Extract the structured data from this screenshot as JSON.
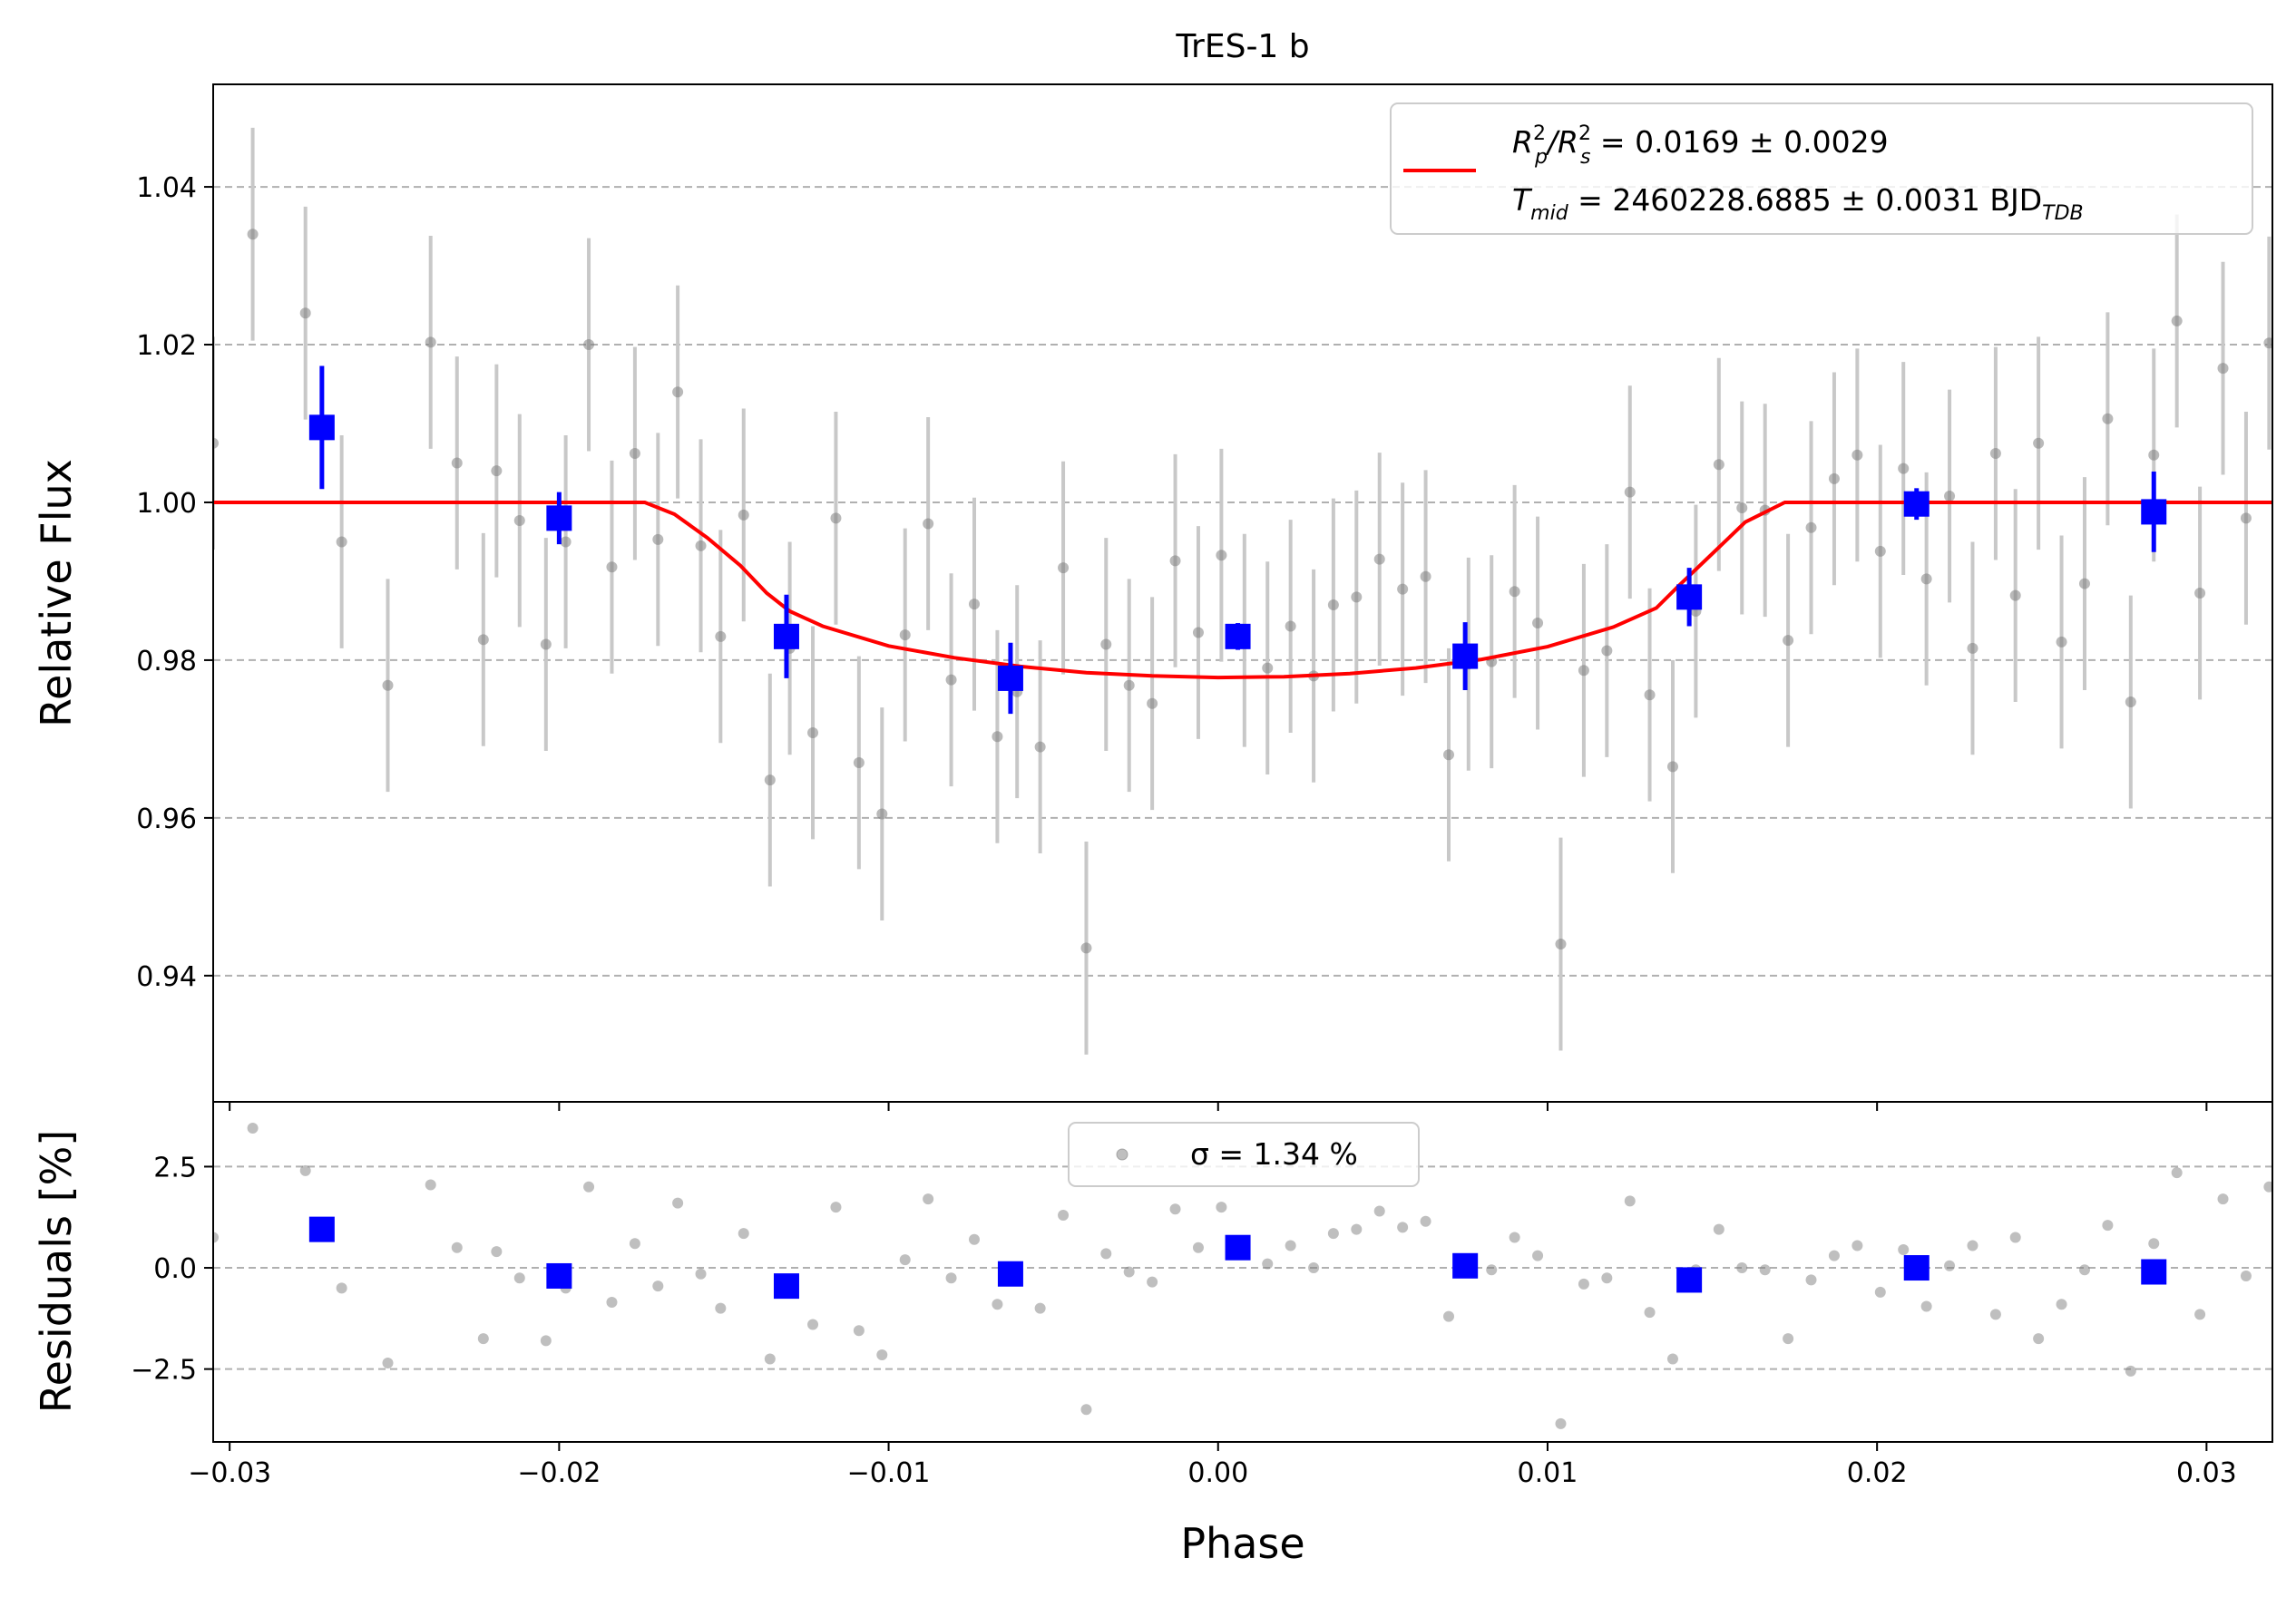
{
  "chart_data": [
    {
      "type": "scatter",
      "panel": "main",
      "title": "TrES-1 b",
      "xlabel": "",
      "ylabel": "Relative Flux",
      "xlim": [
        -0.0305,
        0.032
      ],
      "ylim": [
        0.924,
        1.053
      ],
      "yticks": [
        "0.94",
        "0.96",
        "0.98",
        "1.00",
        "1.02",
        "1.04"
      ],
      "ytick_values": [
        0.94,
        0.96,
        0.98,
        1.0,
        1.02,
        1.04
      ],
      "grid": "horizontal dashed",
      "colors": {
        "data": "#808080",
        "errorbar": "#c8c8c8",
        "binned": "#0000ff",
        "model": "#ff0000"
      },
      "legend": {
        "placement": "upper right",
        "line1": {
          "name": "R",
          "sub1": "p",
          "sup1": "2",
          "sep": "/R",
          "sub2": "s",
          "sup2": "2",
          "value": " = 0.0169 ± 0.0029"
        },
        "line2": {
          "name": "T",
          "sub1": "mid",
          "value": " = 2460228.6885 ± 0.0031 BJD",
          "sub2": "TDB"
        }
      },
      "model": {
        "name": "transit model",
        "x": [
          -0.0305,
          -0.0174,
          -0.0165,
          -0.0155,
          -0.0145,
          -0.0137,
          -0.013,
          -0.012,
          -0.01,
          -0.008,
          -0.006,
          -0.004,
          -0.002,
          0.0,
          0.002,
          0.004,
          0.006,
          0.008,
          0.01,
          0.012,
          0.0133,
          0.014,
          0.015,
          0.016,
          0.0172,
          0.032
        ],
        "y": [
          1.0,
          1.0,
          0.9985,
          0.9955,
          0.992,
          0.9885,
          0.9862,
          0.9843,
          0.9818,
          0.9803,
          0.9792,
          0.9784,
          0.978,
          0.9778,
          0.9779,
          0.9783,
          0.979,
          0.9801,
          0.9817,
          0.9842,
          0.9866,
          0.9895,
          0.9935,
          0.9975,
          1.0,
          1.0
        ]
      },
      "raw": {
        "x": [
          -0.0305,
          -0.0293,
          -0.0277,
          -0.0266,
          -0.0252,
          -0.0239,
          -0.0231,
          -0.0223,
          -0.0219,
          -0.0212,
          -0.0204,
          -0.0198,
          -0.0191,
          -0.0184,
          -0.0177,
          -0.017,
          -0.0164,
          -0.0157,
          -0.0151,
          -0.0144,
          -0.0136,
          -0.013,
          -0.0123,
          -0.0116,
          -0.0109,
          -0.0102,
          -0.0095,
          -0.0088,
          -0.0081,
          -0.0074,
          -0.0067,
          -0.0061,
          -0.0054,
          -0.0047,
          -0.004,
          -0.0034,
          -0.0027,
          -0.002,
          -0.0013,
          -0.0006,
          0.0001,
          0.0008,
          0.0015,
          0.0022,
          0.0029,
          0.0035,
          0.0042,
          0.0049,
          0.0056,
          0.0063,
          0.007,
          0.0076,
          0.0083,
          0.009,
          0.0097,
          0.0104,
          0.0111,
          0.0118,
          0.0125,
          0.0131,
          0.0138,
          0.0145,
          0.0152,
          0.0159,
          0.0166,
          0.0173,
          0.018,
          0.0187,
          0.0194,
          0.0201,
          0.0208,
          0.0215,
          0.0222,
          0.0229,
          0.0236,
          0.0242,
          0.0249,
          0.0256,
          0.0263,
          0.027,
          0.0277,
          0.0284,
          0.0291,
          0.0298,
          0.0305,
          0.0312,
          0.0319
        ],
        "y": [
          1.0075,
          1.034,
          1.024,
          0.995,
          0.9768,
          1.0203,
          1.005,
          0.9826,
          1.004,
          0.9977,
          0.982,
          0.995,
          1.02,
          0.9918,
          1.0062,
          0.9953,
          1.014,
          0.9945,
          0.983,
          0.9984,
          0.9648,
          0.9815,
          0.9708,
          0.998,
          0.967,
          0.9605,
          0.9832,
          0.9973,
          0.9775,
          0.9871,
          0.9703,
          0.976,
          0.969,
          0.9917,
          0.9435,
          0.982,
          0.9768,
          0.9745,
          0.9926,
          0.9835,
          0.9933,
          0.9825,
          0.979,
          0.9843,
          0.978,
          0.987,
          0.988,
          0.9928,
          0.989,
          0.9906,
          0.968,
          0.9795,
          0.9798,
          0.9887,
          0.9847,
          0.944,
          0.9787,
          0.9812,
          1.0013,
          0.9756,
          0.9665,
          0.9862,
          1.0048,
          0.9993,
          0.999,
          0.9825,
          0.9968,
          1.003,
          1.006,
          0.9938,
          1.0043,
          0.9903,
          1.0008,
          0.9815,
          1.0062,
          0.9882,
          1.0075,
          0.9823,
          0.9897,
          1.0106,
          0.9747,
          1.006,
          1.023,
          0.9885,
          1.017,
          0.998,
          1.0202
        ],
        "err": [
          0.0135,
          0.0135,
          0.0135,
          0.0135,
          0.0135,
          0.0135,
          0.0135,
          0.0135,
          0.0135,
          0.0135,
          0.0135,
          0.0135,
          0.0135,
          0.0135,
          0.0135,
          0.0135,
          0.0135,
          0.0135,
          0.0135,
          0.0135,
          0.0135,
          0.0135,
          0.0135,
          0.0135,
          0.0135,
          0.0135,
          0.0135,
          0.0135,
          0.0135,
          0.0135,
          0.0135,
          0.0135,
          0.0135,
          0.0135,
          0.0135,
          0.0135,
          0.0135,
          0.0135,
          0.0135,
          0.0135,
          0.0135,
          0.0135,
          0.0135,
          0.0135,
          0.0135,
          0.0135,
          0.0135,
          0.0135,
          0.0135,
          0.0135,
          0.0135,
          0.0135,
          0.0135,
          0.0135,
          0.0135,
          0.0135,
          0.0135,
          0.0135,
          0.0135,
          0.0135,
          0.0135,
          0.0135,
          0.0135,
          0.0135,
          0.0135,
          0.0135,
          0.0135,
          0.0135,
          0.0135,
          0.0135,
          0.0135,
          0.0135,
          0.0135,
          0.0135,
          0.0135,
          0.0135,
          0.0135,
          0.0135,
          0.0135,
          0.0135,
          0.0135,
          0.0135,
          0.0135,
          0.0135,
          0.0135,
          0.0135,
          0.0135
        ]
      },
      "binned": {
        "x": [
          -0.0272,
          -0.02,
          -0.0131,
          -0.0063,
          0.0006,
          0.0075,
          0.0143,
          0.0212,
          0.0284
        ],
        "y": [
          1.0095,
          0.998,
          0.983,
          0.9777,
          0.983,
          0.9805,
          0.988,
          0.9998,
          0.9988
        ],
        "err": [
          0.0078,
          0.0033,
          0.0053,
          0.0045,
          0.0017,
          0.0043,
          0.0037,
          0.002,
          0.0051
        ]
      }
    },
    {
      "type": "scatter",
      "panel": "residuals",
      "xlabel": "Phase",
      "ylabel": "Residuals [%]",
      "xlim": [
        -0.0305,
        0.032
      ],
      "ylim": [
        -4.3,
        4.1
      ],
      "xticks": [
        "−0.03",
        "−0.02",
        "−0.01",
        "0.00",
        "0.01",
        "0.02",
        "0.03"
      ],
      "xtick_values": [
        -0.03,
        -0.02,
        -0.01,
        0.0,
        0.01,
        0.02,
        0.03
      ],
      "yticks": [
        "−2.5",
        "0.0",
        "2.5"
      ],
      "ytick_values": [
        -2.5,
        0.0,
        2.5
      ],
      "grid": "horizontal dashed",
      "legend": {
        "placement": "upper center",
        "label": "σ = 1.34 %"
      },
      "raw": {
        "x": [
          -0.0305,
          -0.0293,
          -0.0277,
          -0.0266,
          -0.0252,
          -0.0239,
          -0.0231,
          -0.0223,
          -0.0219,
          -0.0212,
          -0.0204,
          -0.0198,
          -0.0191,
          -0.0184,
          -0.0177,
          -0.017,
          -0.0164,
          -0.0157,
          -0.0151,
          -0.0144,
          -0.0136,
          -0.013,
          -0.0123,
          -0.0116,
          -0.0109,
          -0.0102,
          -0.0095,
          -0.0088,
          -0.0081,
          -0.0074,
          -0.0067,
          -0.0061,
          -0.0054,
          -0.0047,
          -0.004,
          -0.0034,
          -0.0027,
          -0.002,
          -0.0013,
          -0.0006,
          0.0001,
          0.0008,
          0.0015,
          0.0022,
          0.0029,
          0.0035,
          0.0042,
          0.0049,
          0.0056,
          0.0063,
          0.007,
          0.0076,
          0.0083,
          0.009,
          0.0097,
          0.0104,
          0.0111,
          0.0118,
          0.0125,
          0.0131,
          0.0138,
          0.0145,
          0.0152,
          0.0159,
          0.0166,
          0.0173,
          0.018,
          0.0187,
          0.0194,
          0.0201,
          0.0208,
          0.0215,
          0.0222,
          0.0229,
          0.0236,
          0.0242,
          0.0249,
          0.0256,
          0.0263,
          0.027,
          0.0277,
          0.0284,
          0.0291,
          0.0298,
          0.0305,
          0.0312,
          0.0319
        ],
        "y": [
          0.75,
          3.45,
          2.4,
          -0.5,
          -2.35,
          2.05,
          0.5,
          -1.75,
          0.4,
          -0.25,
          -1.8,
          -0.5,
          2.0,
          -0.85,
          0.6,
          -0.45,
          1.6,
          -0.15,
          -1.0,
          0.85,
          -2.25,
          -0.4,
          -1.4,
          1.5,
          -1.55,
          -2.15,
          0.2,
          1.7,
          -0.25,
          0.7,
          -0.9,
          -0.25,
          -1.0,
          1.3,
          -3.5,
          0.35,
          -0.1,
          -0.35,
          1.45,
          0.5,
          1.5,
          0.4,
          0.1,
          0.55,
          0.0,
          0.85,
          0.95,
          1.4,
          1.0,
          1.15,
          -1.2,
          0.0,
          -0.05,
          0.75,
          0.3,
          -3.85,
          -0.4,
          -0.25,
          1.65,
          -1.1,
          -2.25,
          -0.05,
          0.95,
          0.0,
          -0.05,
          -1.75,
          -0.3,
          0.3,
          0.55,
          -0.6,
          0.45,
          -0.95,
          0.05,
          0.55,
          -1.15,
          0.75,
          -1.75,
          -0.9,
          -0.05,
          1.05,
          -2.55,
          0.6,
          2.35,
          -1.15,
          1.7,
          -0.2,
          2.0
        ]
      },
      "binned": {
        "x": [
          -0.0272,
          -0.02,
          -0.0131,
          -0.0063,
          0.0006,
          0.0075,
          0.0143,
          0.0212,
          0.0284
        ],
        "y": [
          0.95,
          -0.2,
          -0.45,
          -0.15,
          0.5,
          0.05,
          -0.3,
          0.0,
          -0.1
        ]
      }
    }
  ]
}
